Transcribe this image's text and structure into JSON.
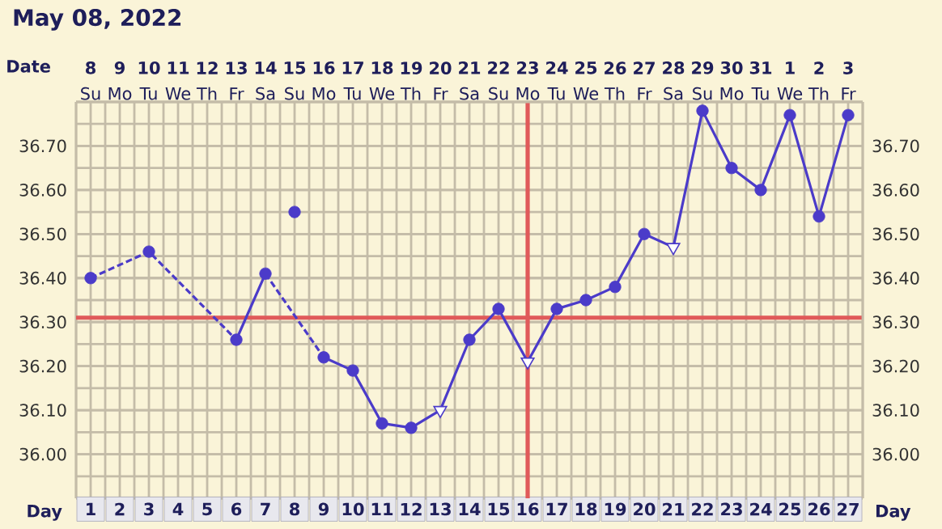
{
  "chart_data": {
    "type": "line",
    "title": "May 08, 2022",
    "xlabel": "Day",
    "x2label": "Date",
    "x": [
      1,
      2,
      3,
      4,
      5,
      6,
      7,
      8,
      9,
      10,
      11,
      12,
      13,
      14,
      15,
      16,
      17,
      18,
      19,
      20,
      21,
      22,
      23,
      24,
      25,
      26,
      27
    ],
    "xlim": [
      0.5,
      27.5
    ],
    "xticks": [
      1,
      2,
      3,
      4,
      5,
      6,
      7,
      8,
      9,
      10,
      11,
      12,
      13,
      14,
      15,
      16,
      17,
      18,
      19,
      20,
      21,
      22,
      23,
      24,
      25,
      26,
      27
    ],
    "x2lim": [
      "2022-05-07T12:00",
      "2022-06-03T12:00"
    ],
    "x2ticks": [
      {
        "value": "2022-05-08",
        "label": "**8** Su"
      },
      {
        "value": "2022-05-09",
        "label": "**9** Mo"
      },
      {
        "value": "2022-05-10",
        "label": "**10** Tu"
      },
      {
        "value": "2022-05-11",
        "label": "**11** We"
      },
      {
        "value": "2022-05-12",
        "label": "**12** Th"
      },
      {
        "value": "2022-05-13",
        "label": "**13** Fr"
      },
      {
        "value": "2022-05-14",
        "label": "**14** Sa"
      },
      {
        "value": "2022-05-15",
        "label": "**15** Su"
      },
      {
        "value": "2022-05-16",
        "label": "**16** Mo"
      },
      {
        "value": "2022-05-17",
        "label": "**17** Tu"
      },
      {
        "value": "2022-05-18",
        "label": "**18** We"
      },
      {
        "value": "2022-05-19",
        "label": "**19** Th"
      },
      {
        "value": "2022-05-20",
        "label": "**20** Fr"
      },
      {
        "value": "2022-05-21",
        "label": "**21** Sa"
      },
      {
        "value": "2022-05-22",
        "label": "**22** Su"
      },
      {
        "value": "2022-05-23",
        "label": "**23** Mo"
      },
      {
        "value": "2022-05-24",
        "label": "**24** Tu"
      },
      {
        "value": "2022-05-25",
        "label": "**25** We"
      },
      {
        "value": "2022-05-26",
        "label": "**26** Th"
      },
      {
        "value": "2022-05-27",
        "label": "**27** Fr"
      },
      {
        "value": "2022-05-28",
        "label": "**28** Sa"
      },
      {
        "value": "2022-05-29",
        "label": "**29** Su"
      },
      {
        "value": "2022-05-30",
        "label": "**30** Mo"
      },
      {
        "value": "2022-05-31",
        "label": "**31** Tu"
      },
      {
        "value": "2022-06-01",
        "label": "**1** We"
      },
      {
        "value": "2022-06-02",
        "label": "**2** Th"
      },
      {
        "value": "2022-06-03",
        "label": "**3** Fr"
      }
    ],
    "ylim": [
      35.9,
      36.8
    ],
    "yticks": [
      {
        "value": 36.0,
        "label": "36.00"
      },
      {
        "value": 36.1,
        "label": "36.10"
      },
      {
        "value": 36.2,
        "label": "36.20"
      },
      {
        "value": 36.3,
        "label": "36.30"
      },
      {
        "value": 36.4,
        "label": "36.40"
      },
      {
        "value": 36.5,
        "label": "36.50"
      },
      {
        "value": 36.6,
        "label": "36.60"
      },
      {
        "value": 36.7,
        "label": "36.70"
      }
    ],
    "y2lim": [
      35.9,
      36.8
    ],
    "y2ticks": [
      {
        "value": 36.0,
        "label": "36.00"
      },
      {
        "value": 36.1,
        "label": "36.10"
      },
      {
        "value": 36.2,
        "label": "36.20"
      },
      {
        "value": 36.3,
        "label": "36.30"
      },
      {
        "value": 36.4,
        "label": "36.40"
      },
      {
        "value": 36.5,
        "label": "36.50"
      },
      {
        "value": 36.6,
        "label": "36.60"
      },
      {
        "value": 36.7,
        "label": "36.70"
      }
    ],
    "grid": true,
    "ref_lines": [
      {
        "axis": "y",
        "value": 36.31,
        "color": "#e05a5a"
      },
      {
        "axis": "x",
        "value": 16,
        "color": "#e05a5a"
      }
    ],
    "series": [
      {
        "color": "#4b3bc9",
        "line_style": "dashed",
        "marker": "none",
        "x": [
          1,
          3,
          6
        ],
        "values": [
          36.4,
          36.46,
          36.26
        ]
      },
      {
        "color": "#4b3bc9",
        "line_style": "dashed",
        "marker": "none",
        "x": [
          7,
          9
        ],
        "values": [
          36.41,
          36.22
        ]
      },
      {
        "color": "#4b3bc9",
        "line_style": "solid",
        "marker": "none",
        "values": [
          null,
          null,
          null,
          null,
          null,
          36.26,
          36.41,
          null,
          36.22,
          36.19,
          36.07,
          36.06,
          36.1,
          36.26,
          36.33,
          36.21,
          36.33,
          36.35,
          36.38,
          36.5,
          36.47,
          36.78,
          36.65,
          36.6,
          36.77,
          36.54,
          36.77
        ]
      },
      {
        "type": "scatter",
        "color": "#4b3bc9",
        "marker": "circle",
        "values": [
          36.4,
          null,
          36.46,
          null,
          null,
          36.26,
          36.41,
          36.55,
          36.22,
          36.19,
          36.07,
          36.06,
          null,
          36.26,
          36.33,
          null,
          36.33,
          36.35,
          36.38,
          36.5,
          null,
          36.78,
          36.65,
          36.6,
          36.77,
          36.54,
          36.77
        ]
      },
      {
        "type": "scatter",
        "color": "#4b3bc9",
        "marker": "triangle",
        "x": [
          13,
          16,
          21
        ],
        "values": [
          36.1,
          36.21,
          36.47
        ]
      }
    ]
  }
}
